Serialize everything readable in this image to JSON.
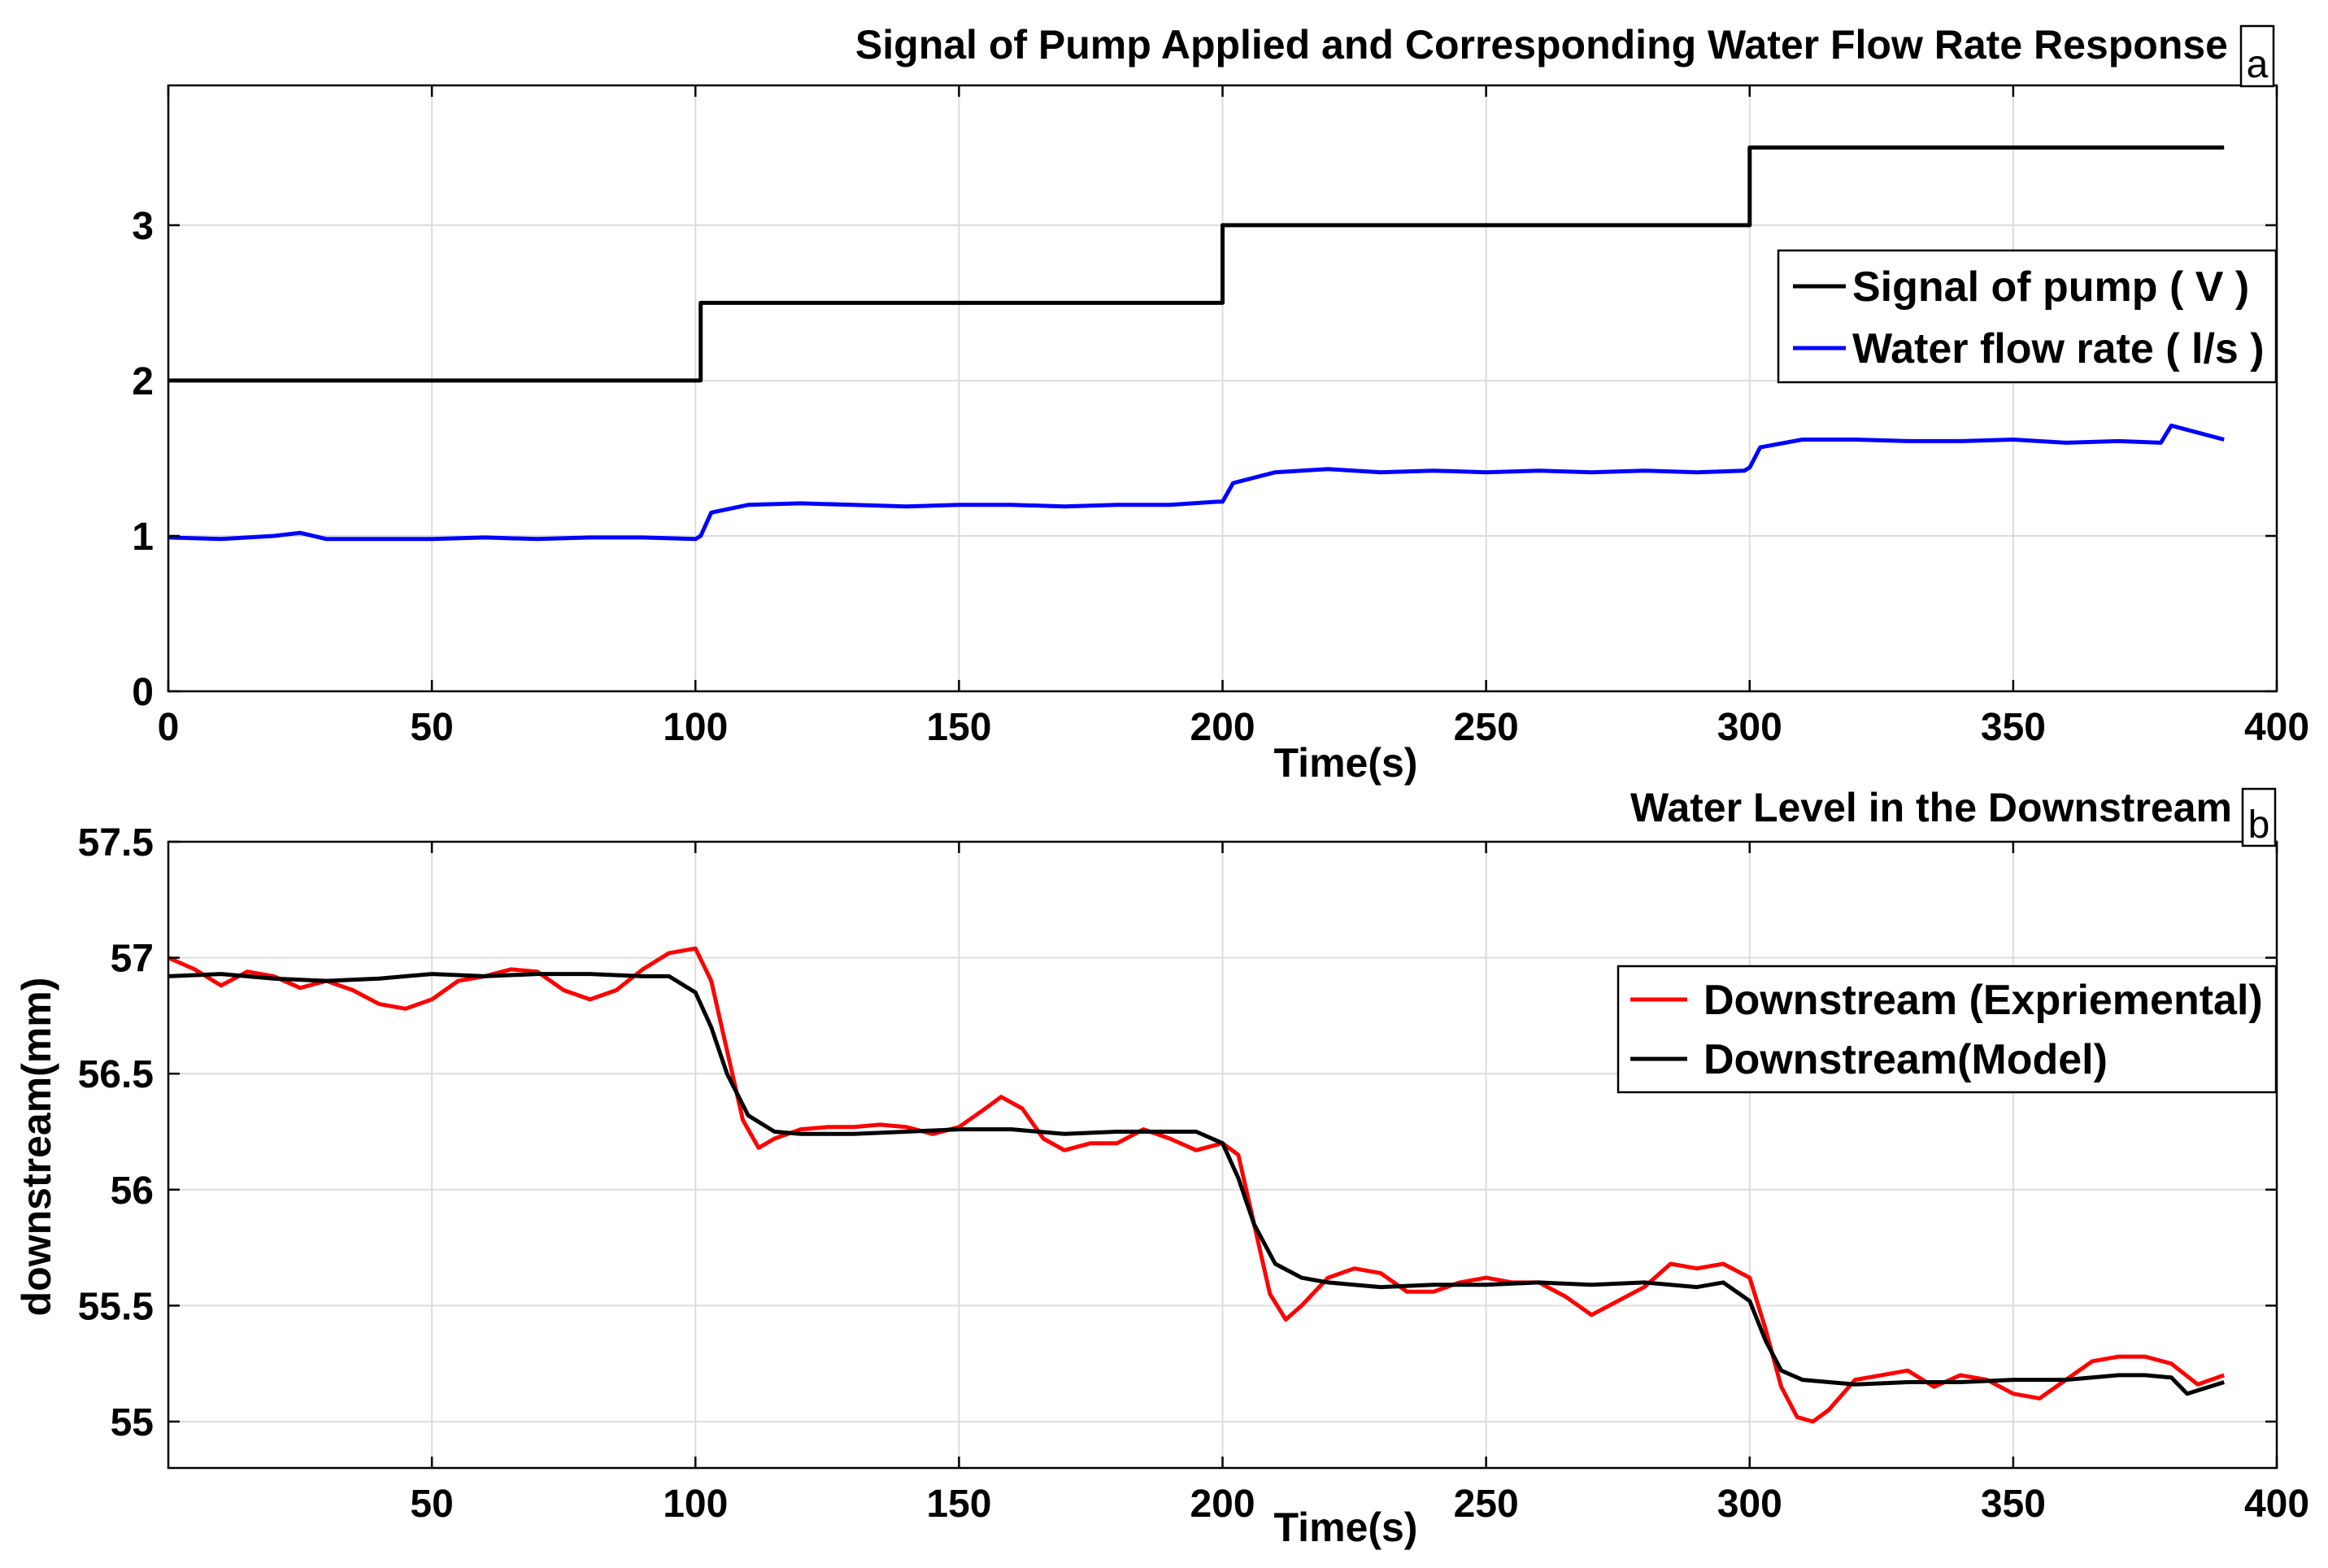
{
  "chart_data": [
    {
      "type": "line",
      "panel": "a",
      "title": "Signal of Pump Applied  and Corresponding Water Flow Rate Response",
      "xlabel": "Time(s)",
      "ylabel": "",
      "xlim": [
        0,
        400
      ],
      "ylim": [
        0,
        3.9
      ],
      "xticks": [
        0,
        50,
        100,
        150,
        200,
        250,
        300,
        350,
        400
      ],
      "yticks": [
        0,
        1,
        2,
        3
      ],
      "grid": true,
      "legend_position": "right",
      "series": [
        {
          "name": "Signal of pump ( V )",
          "color": "#000000",
          "x": [
            0,
            101,
            101,
            200,
            200,
            300,
            300,
            390
          ],
          "y": [
            2,
            2,
            2.5,
            2.5,
            3,
            3,
            3.5,
            3.5
          ]
        },
        {
          "name": "Water flow rate ( l/s )",
          "color": "#0000ff",
          "x": [
            0,
            10,
            20,
            25,
            30,
            40,
            50,
            60,
            70,
            80,
            90,
            100,
            101,
            103,
            110,
            120,
            130,
            140,
            150,
            160,
            170,
            180,
            190,
            199,
            200,
            202,
            210,
            220,
            230,
            240,
            250,
            260,
            270,
            280,
            290,
            299,
            300,
            302,
            310,
            320,
            330,
            340,
            350,
            360,
            370,
            378,
            380,
            390
          ],
          "y": [
            0.99,
            0.98,
            1.0,
            1.02,
            0.98,
            0.98,
            0.98,
            0.99,
            0.98,
            0.99,
            0.99,
            0.98,
            1.0,
            1.15,
            1.2,
            1.21,
            1.2,
            1.19,
            1.2,
            1.2,
            1.19,
            1.2,
            1.2,
            1.22,
            1.22,
            1.34,
            1.41,
            1.43,
            1.41,
            1.42,
            1.41,
            1.42,
            1.41,
            1.42,
            1.41,
            1.42,
            1.44,
            1.57,
            1.62,
            1.62,
            1.61,
            1.61,
            1.62,
            1.6,
            1.61,
            1.6,
            1.71,
            1.62
          ]
        }
      ]
    },
    {
      "type": "line",
      "panel": "b",
      "title": "Water Level in the Downstream",
      "xlabel": "Time(s)",
      "ylabel": "downstream(mm)",
      "xlim": [
        0,
        400
      ],
      "ylim": [
        54.8,
        57.5
      ],
      "xticks": [
        50,
        100,
        150,
        200,
        250,
        300,
        350,
        400
      ],
      "yticks": [
        55,
        55.5,
        56,
        56.5,
        57,
        57.5
      ],
      "ytick_labels": [
        "55",
        "55.5",
        "56",
        "56.5",
        "57",
        "57.5"
      ],
      "grid": true,
      "legend_position": "right",
      "series": [
        {
          "name": "Downstream (Expriemental)",
          "color": "#ff0000",
          "x": [
            0,
            5,
            10,
            15,
            20,
            25,
            30,
            35,
            40,
            45,
            50,
            55,
            60,
            65,
            70,
            75,
            80,
            85,
            90,
            95,
            100,
            103,
            106,
            109,
            112,
            115,
            120,
            125,
            130,
            135,
            140,
            145,
            150,
            155,
            158,
            162,
            166,
            170,
            175,
            180,
            185,
            190,
            195,
            200,
            203,
            206,
            209,
            212,
            215,
            220,
            225,
            230,
            235,
            240,
            245,
            250,
            255,
            260,
            265,
            270,
            275,
            280,
            285,
            290,
            295,
            300,
            303,
            306,
            309,
            312,
            315,
            320,
            325,
            330,
            335,
            340,
            345,
            350,
            355,
            360,
            365,
            370,
            375,
            380,
            385,
            390
          ],
          "y": [
            57.0,
            56.95,
            56.88,
            56.94,
            56.92,
            56.87,
            56.9,
            56.86,
            56.8,
            56.78,
            56.82,
            56.9,
            56.92,
            56.95,
            56.94,
            56.86,
            56.82,
            56.86,
            56.95,
            57.02,
            57.04,
            56.9,
            56.6,
            56.3,
            56.18,
            56.22,
            56.26,
            56.27,
            56.27,
            56.28,
            56.27,
            56.24,
            56.27,
            56.35,
            56.4,
            56.35,
            56.22,
            56.17,
            56.2,
            56.2,
            56.26,
            56.22,
            56.17,
            56.2,
            56.15,
            55.85,
            55.55,
            55.44,
            55.5,
            55.62,
            55.66,
            55.64,
            55.56,
            55.56,
            55.6,
            55.62,
            55.6,
            55.6,
            55.54,
            55.46,
            55.52,
            55.58,
            55.68,
            55.66,
            55.68,
            55.62,
            55.4,
            55.15,
            55.02,
            55.0,
            55.05,
            55.18,
            55.2,
            55.22,
            55.15,
            55.2,
            55.18,
            55.12,
            55.1,
            55.18,
            55.26,
            55.28,
            55.28,
            55.25,
            55.16,
            55.2
          ]
        },
        {
          "name": "Downstream(Model)",
          "color": "#000000",
          "x": [
            0,
            10,
            20,
            30,
            40,
            50,
            60,
            70,
            80,
            90,
            95,
            100,
            103,
            106,
            110,
            115,
            120,
            130,
            140,
            150,
            160,
            170,
            180,
            190,
            195,
            200,
            203,
            206,
            210,
            215,
            220,
            230,
            240,
            250,
            260,
            270,
            280,
            290,
            295,
            300,
            303,
            306,
            310,
            320,
            330,
            340,
            350,
            360,
            370,
            375,
            380,
            383,
            390
          ],
          "y": [
            56.92,
            56.93,
            56.91,
            56.9,
            56.91,
            56.93,
            56.92,
            56.93,
            56.93,
            56.92,
            56.92,
            56.85,
            56.7,
            56.5,
            56.32,
            56.25,
            56.24,
            56.24,
            56.25,
            56.26,
            56.26,
            56.24,
            56.25,
            56.25,
            56.25,
            56.2,
            56.05,
            55.85,
            55.68,
            55.62,
            55.6,
            55.58,
            55.59,
            55.59,
            55.6,
            55.59,
            55.6,
            55.58,
            55.6,
            55.52,
            55.35,
            55.22,
            55.18,
            55.16,
            55.17,
            55.17,
            55.18,
            55.18,
            55.2,
            55.2,
            55.19,
            55.12,
            55.17
          ]
        }
      ]
    }
  ],
  "panel_tags": {
    "a": "a",
    "b": "b"
  },
  "colors": {
    "grid": "#dcdcdc",
    "axis": "#000000"
  }
}
